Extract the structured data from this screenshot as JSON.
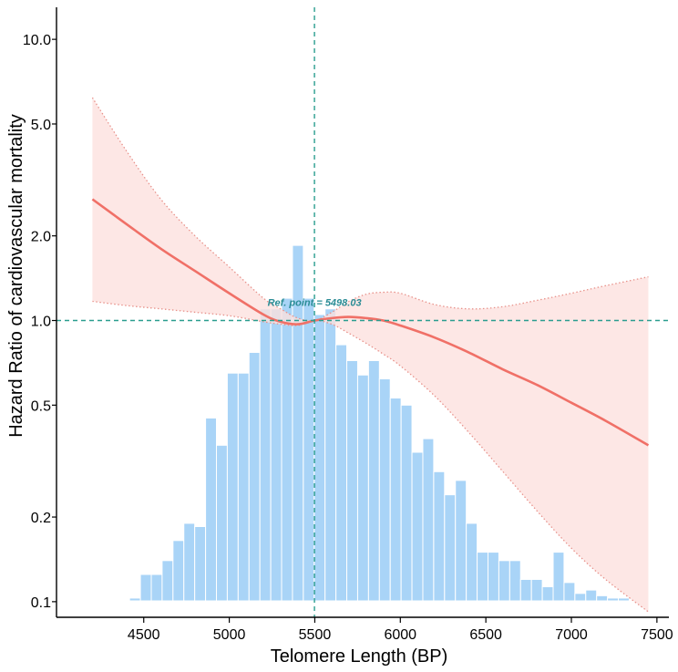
{
  "chart_data": {
    "type": "line",
    "title": "",
    "xlabel": "Telomere Length (BP)",
    "ylabel": "Hazard Ratio of cardiovascular mortality",
    "y_scale": "log",
    "xlim": [
      3990,
      7570
    ],
    "ylim": [
      0.088,
      13.0
    ],
    "x_ticks": [
      4500,
      5000,
      5500,
      6000,
      6500,
      7000,
      7500
    ],
    "y_ticks": [
      0.1,
      0.2,
      0.5,
      1.0,
      2.0,
      5.0,
      10.0
    ],
    "y_tick_labels": [
      "0.1",
      "0.2",
      "0.5",
      "1.0",
      "2.0",
      "5.0",
      "10.0"
    ],
    "reference": {
      "x": 5498.03,
      "y": 1.0,
      "label": "Ref. point = 5498.03"
    },
    "series": [
      {
        "name": "Hazard ratio",
        "x": [
          4200,
          4400,
          4600,
          4800,
          5000,
          5200,
          5300,
          5400,
          5500,
          5600,
          5700,
          5800,
          5900,
          6000,
          6200,
          6400,
          6600,
          6800,
          7000,
          7200,
          7450
        ],
        "y": [
          2.7,
          2.2,
          1.8,
          1.5,
          1.25,
          1.05,
          0.99,
          0.97,
          1.0,
          1.02,
          1.03,
          1.02,
          1.0,
          0.96,
          0.87,
          0.77,
          0.67,
          0.59,
          0.51,
          0.44,
          0.36
        ]
      },
      {
        "name": "95% CI upper",
        "x": [
          4200,
          4400,
          4600,
          4800,
          5000,
          5200,
          5300,
          5400,
          5500,
          5600,
          5700,
          5800,
          5900,
          6000,
          6200,
          6400,
          6600,
          6800,
          7000,
          7200,
          7450
        ],
        "y": [
          6.2,
          4.0,
          2.7,
          2.0,
          1.55,
          1.2,
          1.1,
          1.02,
          1.0,
          1.07,
          1.17,
          1.24,
          1.26,
          1.25,
          1.14,
          1.1,
          1.12,
          1.18,
          1.25,
          1.33,
          1.43
        ]
      },
      {
        "name": "95% CI lower",
        "x": [
          4200,
          4400,
          4600,
          4800,
          5000,
          5200,
          5300,
          5400,
          5500,
          5600,
          5700,
          5800,
          5900,
          6000,
          6200,
          6400,
          6600,
          6800,
          7000,
          7200,
          7450
        ],
        "y": [
          1.17,
          1.13,
          1.1,
          1.07,
          1.04,
          0.99,
          0.97,
          0.96,
          1.0,
          0.97,
          0.9,
          0.83,
          0.76,
          0.69,
          0.54,
          0.4,
          0.29,
          0.21,
          0.155,
          0.12,
          0.092
        ]
      }
    ],
    "histogram": {
      "bin_width": 63.5,
      "bins_start": [
        4290,
        4353.5,
        4417,
        4480.5,
        4544,
        4607.5,
        4671,
        4734.5,
        4798,
        4861.5,
        4925,
        4988.5,
        5052,
        5115.5,
        5179,
        5242.5,
        5306,
        5369.5,
        5433,
        5496.5,
        5560,
        5623.5,
        5687,
        5750.5,
        5814,
        5877.5,
        5941,
        6004.5,
        6068,
        6131.5,
        6195,
        6258.5,
        6322,
        6385.5,
        6449,
        6512.5,
        6576,
        6639.5,
        6703,
        6766.5,
        6830,
        6893.5,
        6957,
        7020.5,
        7084,
        7147.5,
        7211,
        7274.5,
        7338
      ],
      "heights": [
        0.095,
        0.095,
        0.103,
        0.125,
        0.125,
        0.14,
        0.165,
        0.19,
        0.185,
        0.45,
        0.36,
        0.65,
        0.65,
        0.77,
        1.1,
        1.1,
        1.2,
        1.85,
        1.2,
        1.05,
        1.1,
        0.82,
        0.72,
        0.64,
        0.72,
        0.62,
        0.53,
        0.5,
        0.34,
        0.38,
        0.29,
        0.24,
        0.27,
        0.19,
        0.15,
        0.15,
        0.14,
        0.14,
        0.12,
        0.12,
        0.113,
        0.15,
        0.117,
        0.107,
        0.11,
        0.105,
        0.103,
        0.103,
        0.093
      ]
    },
    "grid": false,
    "colors": {
      "line": "#f07067",
      "band": "#fde0de",
      "band_edge": "#e8928b",
      "bars": "#a9d4f7",
      "reference": "#2a9d8f",
      "ref_label": "#2a8c95"
    }
  }
}
